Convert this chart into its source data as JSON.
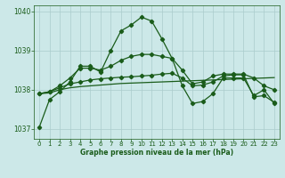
{
  "title": "Graphe pression niveau de la mer (hPa)",
  "background_color": "#cce8e8",
  "grid_color": "#aacccc",
  "line_color": "#1a5c1a",
  "marker_color": "#1a5c1a",
  "ylim": [
    1036.75,
    1040.15
  ],
  "yticks": [
    1037,
    1038,
    1039,
    1040
  ],
  "xlim": [
    -0.5,
    23.5
  ],
  "xticks": [
    0,
    1,
    2,
    3,
    4,
    5,
    6,
    7,
    8,
    9,
    10,
    11,
    12,
    13,
    14,
    15,
    16,
    17,
    18,
    19,
    20,
    21,
    22,
    23
  ],
  "series": {
    "main": [
      1037.05,
      1037.75,
      1037.95,
      1038.2,
      1038.6,
      1038.6,
      1038.45,
      1039.0,
      1039.5,
      1039.65,
      1039.85,
      1039.75,
      1039.3,
      1038.8,
      1038.1,
      1037.65,
      1037.7,
      1037.9,
      1038.3,
      1038.3,
      1038.3,
      1037.85,
      1038.0,
      1037.65
    ],
    "line2": [
      1037.9,
      1037.92,
      1038.0,
      1038.05,
      1038.08,
      1038.1,
      1038.12,
      1038.14,
      1038.16,
      1038.17,
      1038.18,
      1038.19,
      1038.2,
      1038.21,
      1038.22,
      1038.23,
      1038.24,
      1038.25,
      1038.26,
      1038.27,
      1038.28,
      1038.29,
      1038.3,
      1038.31
    ],
    "line3": [
      1037.9,
      1037.95,
      1038.1,
      1038.3,
      1038.55,
      1038.55,
      1038.5,
      1038.6,
      1038.75,
      1038.85,
      1038.9,
      1038.9,
      1038.85,
      1038.8,
      1038.5,
      1038.15,
      1038.2,
      1038.35,
      1038.4,
      1038.4,
      1038.4,
      1038.3,
      1038.1,
      1038.0
    ],
    "line4": [
      1037.9,
      1037.95,
      1038.05,
      1038.15,
      1038.2,
      1038.25,
      1038.28,
      1038.3,
      1038.32,
      1038.33,
      1038.35,
      1038.37,
      1038.4,
      1038.42,
      1038.3,
      1038.1,
      1038.12,
      1038.2,
      1038.35,
      1038.38,
      1038.38,
      1037.82,
      1037.85,
      1037.68
    ]
  }
}
